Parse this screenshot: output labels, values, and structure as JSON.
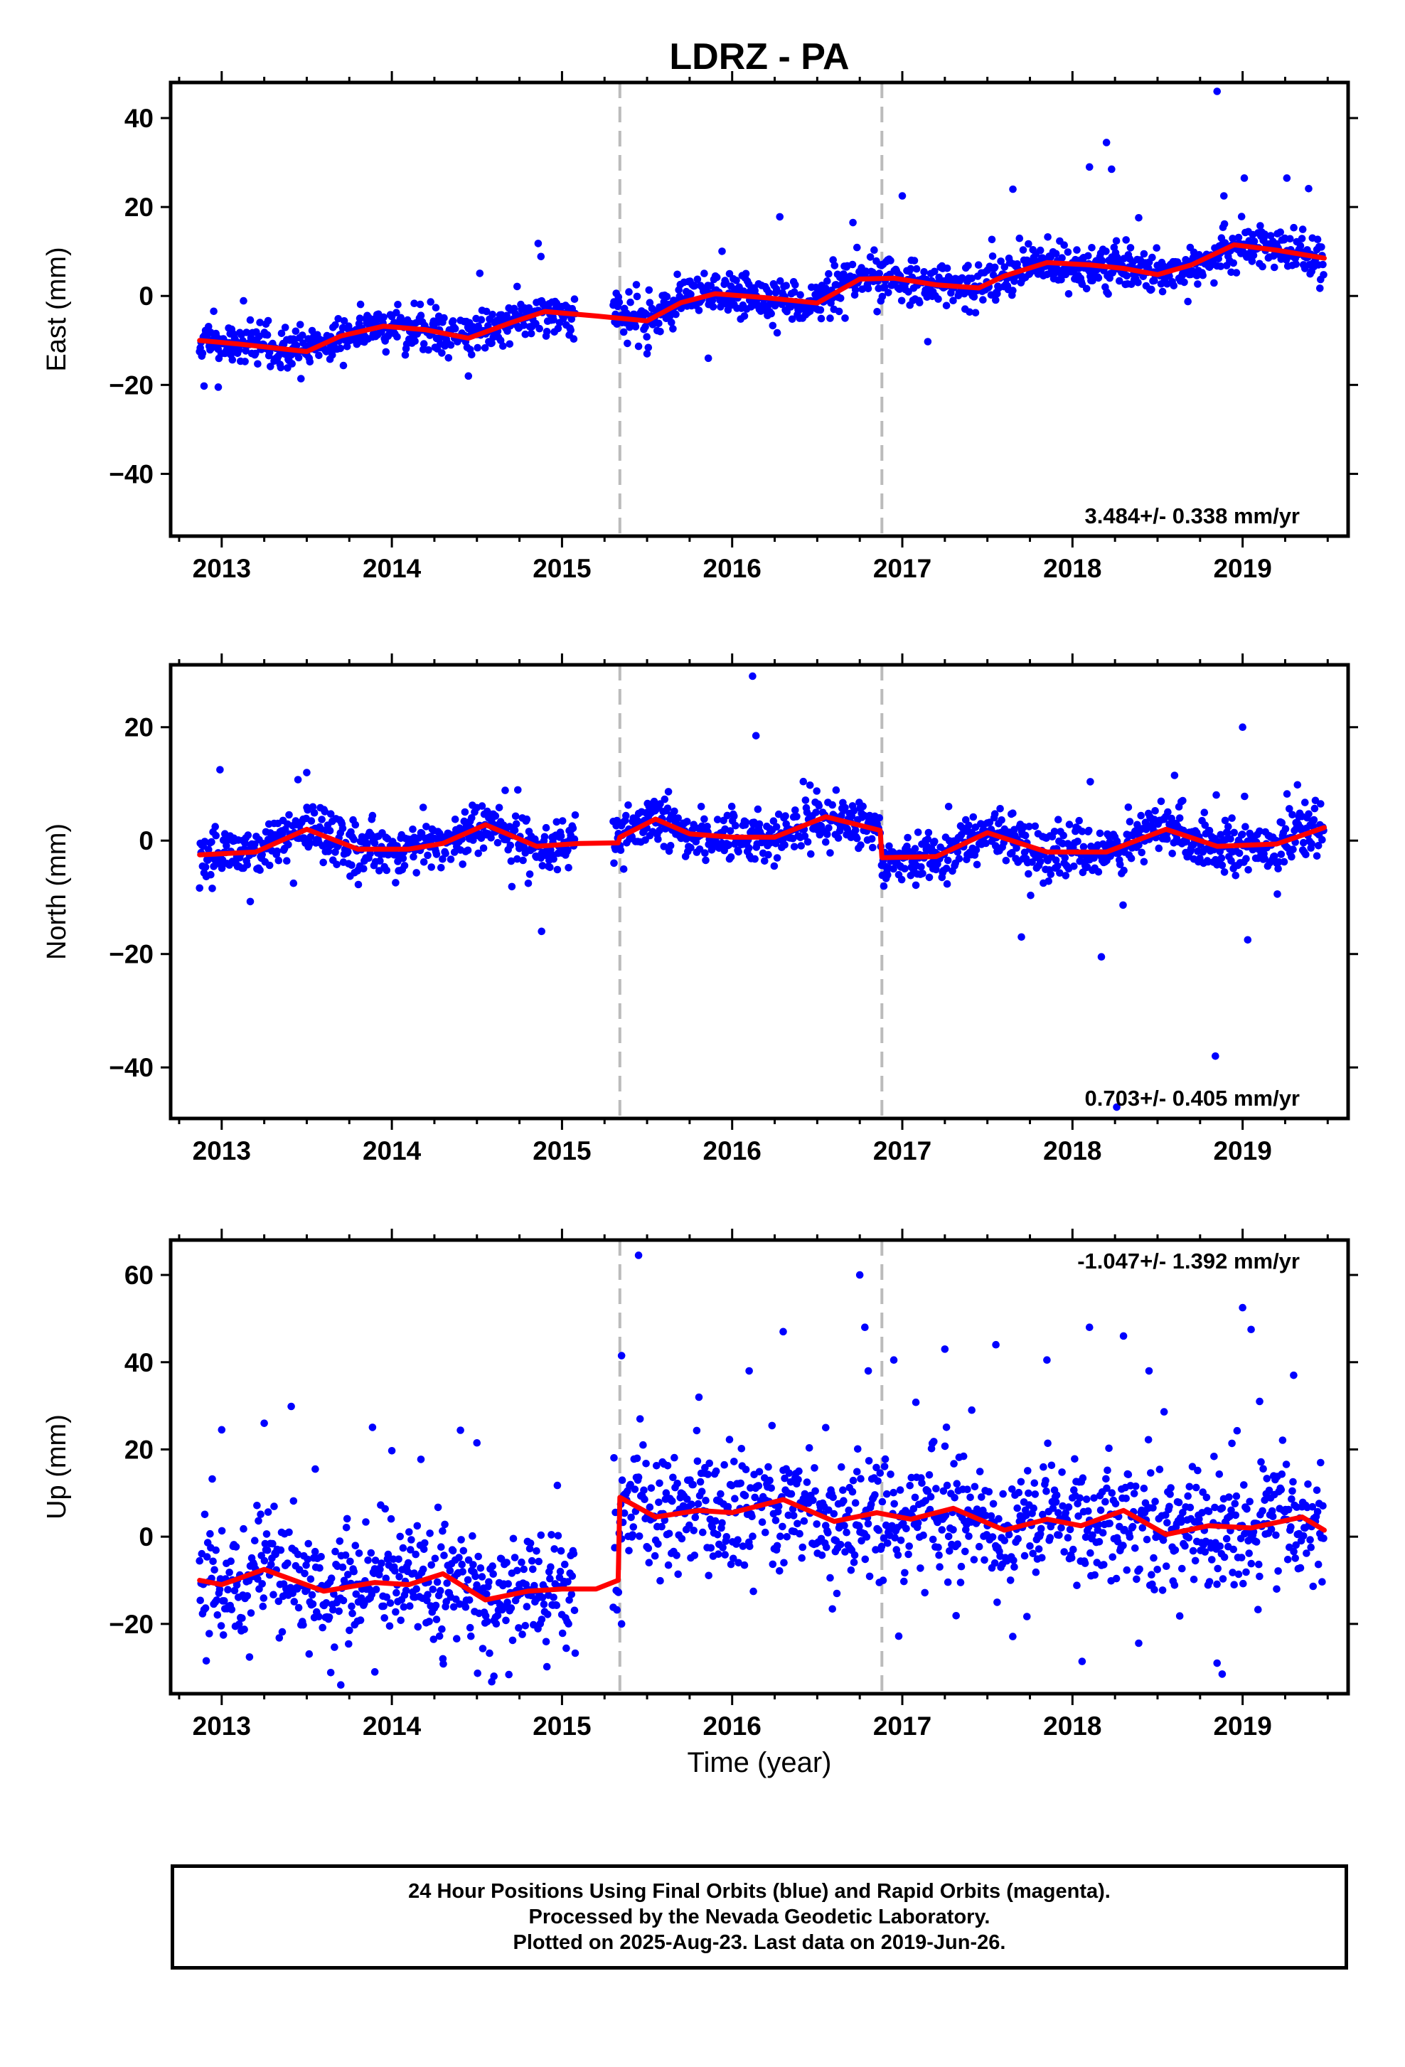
{
  "title": "LDRZ - PA",
  "xlabel": "Time (year)",
  "x_ticks": [
    "2013",
    "2014",
    "2015",
    "2016",
    "2017",
    "2018",
    "2019"
  ],
  "colors": {
    "points": "#0000ff",
    "fit": "#ff0000",
    "breaks": "#bbbbbb",
    "axis": "#000000"
  },
  "caption": {
    "line1": "24 Hour Positions Using Final Orbits (blue) and Rapid Orbits (magenta).",
    "line2": "Processed by the Nevada Geodetic Laboratory.",
    "line3": "Plotted on 2025-Aug-23. Last data on 2019-Jun-26."
  },
  "chart_data": [
    {
      "type": "scatter",
      "panel": "east",
      "ylabel": "East (mm)",
      "xlim": [
        2012.7,
        2019.62
      ],
      "ylim": [
        -54,
        48
      ],
      "y_ticks": [
        "40",
        "20",
        "0",
        "-20",
        "-40"
      ],
      "y_tick_values": [
        40,
        20,
        0,
        -20,
        -40
      ],
      "velocity_label": "3.484+/- 0.338 mm/yr",
      "velocity_label_position": "bottom-right",
      "breaks": [
        2015.34,
        2016.88
      ],
      "data_start": 2012.87,
      "data_end": 2019.48,
      "gap": [
        2015.08,
        2015.3
      ],
      "trend": {
        "x": [
          2012.87,
          2013.1,
          2013.5,
          2013.7,
          2013.95,
          2014.2,
          2014.45,
          2014.7,
          2014.9,
          2015.2,
          2015.5,
          2015.7,
          2015.9,
          2016.2,
          2016.5,
          2016.75,
          2016.95,
          2017.2,
          2017.45,
          2017.6,
          2017.85,
          2018.1,
          2018.3,
          2018.5,
          2018.7,
          2018.95,
          2019.2,
          2019.48
        ],
        "y": [
          -10,
          -10.8,
          -12.5,
          -9,
          -6.8,
          -7.6,
          -9.5,
          -6,
          -3.5,
          -4.5,
          -5.6,
          -1.5,
          0.5,
          -0.4,
          -1.6,
          3.8,
          4,
          2.5,
          1.8,
          4.5,
          7.5,
          7,
          6.2,
          4.8,
          7,
          11.5,
          10.3,
          8.5
        ]
      },
      "scatter_sd": 2.3,
      "outliers": {
        "x": [
          2012.98,
          2014.86,
          2015.5,
          2016.28,
          2016.71,
          2017.0,
          2017.65,
          2018.1,
          2018.2,
          2018.23,
          2018.85,
          2018.89,
          2019.01,
          2019.26,
          2014.45,
          2015.86
        ],
        "y": [
          -20.5,
          11.8,
          -13,
          17.8,
          16.5,
          22.5,
          24,
          29,
          34.5,
          28.5,
          46,
          22.5,
          26.5,
          26.5,
          -18,
          -14
        ]
      }
    },
    {
      "type": "scatter",
      "panel": "north",
      "ylabel": "North (mm)",
      "xlim": [
        2012.7,
        2019.62
      ],
      "ylim": [
        -49,
        31
      ],
      "y_ticks": [
        "20",
        "0",
        "-20",
        "-40"
      ],
      "y_tick_values": [
        20,
        0,
        -20,
        -40
      ],
      "velocity_label": "0.703+/- 0.405 mm/yr",
      "velocity_label_position": "bottom-right",
      "breaks": [
        2015.34,
        2016.88
      ],
      "data_start": 2012.87,
      "data_end": 2019.48,
      "gap": [
        2015.08,
        2015.3
      ],
      "trend": {
        "x": [
          2012.87,
          2013.2,
          2013.5,
          2013.8,
          2014.1,
          2014.3,
          2014.55,
          2014.85,
          2015.1,
          2015.33,
          2015.34,
          2015.55,
          2015.75,
          2016.0,
          2016.25,
          2016.55,
          2016.87,
          2016.88,
          2017.2,
          2017.5,
          2017.85,
          2018.2,
          2018.55,
          2018.85,
          2019.2,
          2019.48
        ],
        "y": [
          -2.5,
          -2,
          2,
          -1.5,
          -1.5,
          -0.5,
          2.8,
          -1,
          -0.5,
          -0.4,
          0.6,
          3.8,
          1.2,
          0.6,
          0.6,
          4.2,
          1.8,
          -3,
          -2.8,
          1.4,
          -2,
          -2,
          2,
          -1,
          -0.6,
          2.3
        ]
      },
      "scatter_sd": 2.1,
      "outliers": {
        "x": [
          2012.99,
          2013.5,
          2014.88,
          2016.12,
          2016.14,
          2018.17,
          2018.26,
          2018.84,
          2019.0,
          2019.03,
          2017.7,
          2018.6
        ],
        "y": [
          12.5,
          12,
          -16,
          29,
          18.5,
          -20.5,
          -47,
          -38,
          20,
          -17.5,
          -17,
          11.5
        ]
      }
    },
    {
      "type": "scatter",
      "panel": "up",
      "ylabel": "Up (mm)",
      "xlim": [
        2012.7,
        2019.62
      ],
      "ylim": [
        -36,
        68
      ],
      "y_ticks": [
        "60",
        "40",
        "20",
        "0",
        "-20"
      ],
      "y_tick_values": [
        60,
        40,
        20,
        0,
        -20
      ],
      "velocity_label": "-1.047+/- 1.392 mm/yr",
      "velocity_label_position": "top-right",
      "breaks": [
        2015.34,
        2016.88
      ],
      "data_start": 2012.87,
      "data_end": 2019.48,
      "gap": [
        2015.08,
        2015.3
      ],
      "trend": {
        "x": [
          2012.87,
          2013.0,
          2013.25,
          2013.6,
          2013.9,
          2014.1,
          2014.3,
          2014.55,
          2014.8,
          2015.0,
          2015.2,
          2015.33,
          2015.34,
          2015.55,
          2015.8,
          2016.0,
          2016.3,
          2016.6,
          2016.85,
          2017.05,
          2017.3,
          2017.6,
          2017.85,
          2018.05,
          2018.3,
          2018.55,
          2018.8,
          2019.05,
          2019.35,
          2019.48
        ],
        "y": [
          -10,
          -11,
          -7.5,
          -12.5,
          -10.5,
          -11,
          -8.5,
          -14.5,
          -12.5,
          -12,
          -12,
          -10,
          9,
          4.5,
          6,
          5.5,
          8.5,
          3.5,
          5.5,
          4,
          6.5,
          1.5,
          4,
          2.5,
          6,
          0.5,
          2.5,
          2,
          4.5,
          1.5
        ]
      },
      "scatter_sd": 6.5,
      "outliers": {
        "x": [
          2013.0,
          2013.25,
          2013.55,
          2013.9,
          2014.5,
          2014.6,
          2015.35,
          2015.45,
          2016.1,
          2016.3,
          2016.55,
          2016.75,
          2016.78,
          2016.8,
          2016.95,
          2017.25,
          2017.55,
          2017.85,
          2018.1,
          2018.3,
          2018.45,
          2018.85,
          2018.88,
          2019.0,
          2019.05,
          2019.1,
          2019.3,
          2013.7,
          2014.3,
          2015.35
        ],
        "y": [
          24.5,
          26,
          15.5,
          -31,
          21.5,
          -32,
          41.5,
          64.5,
          38,
          47,
          25,
          60,
          48,
          38,
          40.5,
          43,
          44,
          40.5,
          48,
          46,
          38,
          -29,
          -31.5,
          52.5,
          47.5,
          31,
          37,
          -34,
          -28,
          -20
        ]
      }
    }
  ]
}
